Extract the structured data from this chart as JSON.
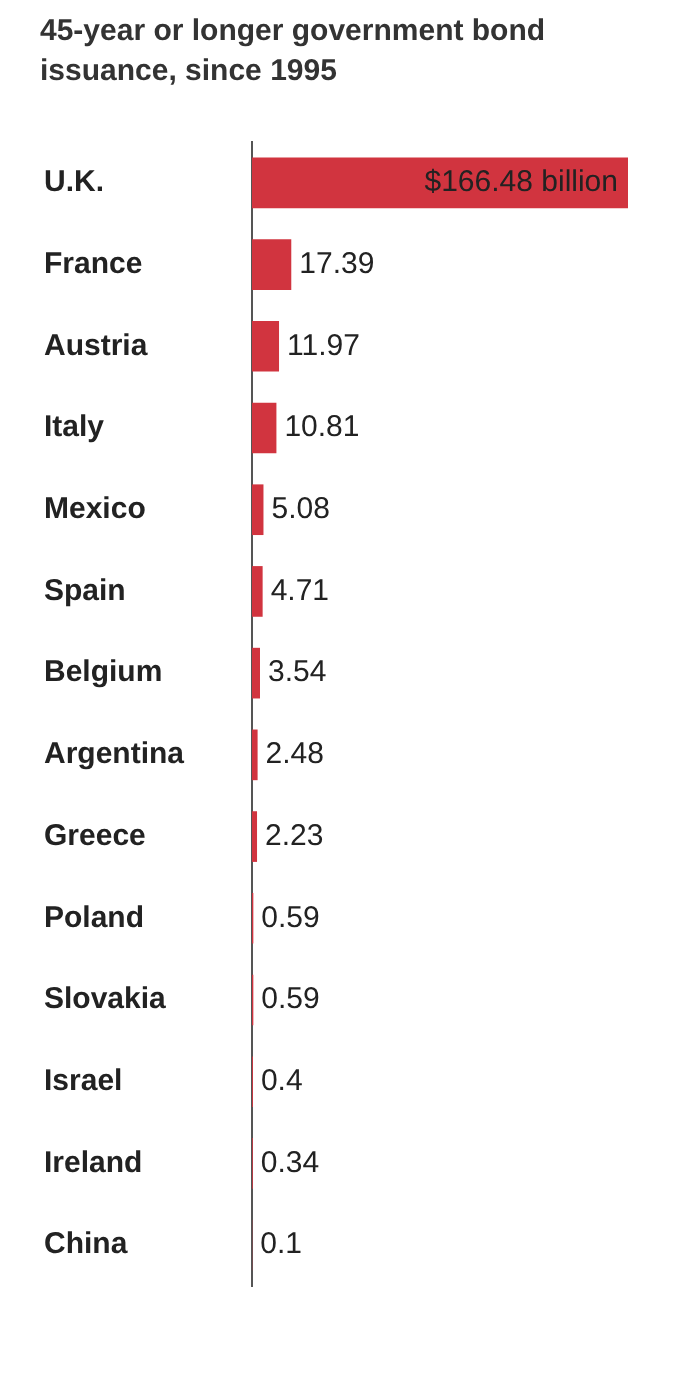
{
  "chart_data": {
    "type": "bar",
    "orientation": "horizontal",
    "title": "45-year or longer government bond issuance, since 1995",
    "categories": [
      "U.K.",
      "France",
      "Austria",
      "Italy",
      "Mexico",
      "Spain",
      "Belgium",
      "Argentina",
      "Greece",
      "Poland",
      "Slovakia",
      "Israel",
      "Ireland",
      "China"
    ],
    "values": [
      166.48,
      17.39,
      11.97,
      10.81,
      5.08,
      4.71,
      3.54,
      2.48,
      2.23,
      0.59,
      0.59,
      0.4,
      0.34,
      0.1
    ],
    "value_labels": [
      "$166.48 billion",
      "17.39",
      "11.97",
      "10.81",
      "5.08",
      "4.71",
      "3.54",
      "2.48",
      "2.23",
      "0.59",
      "0.59",
      "0.4",
      "0.34",
      "0.1"
    ],
    "color": "#d1343f"
  }
}
